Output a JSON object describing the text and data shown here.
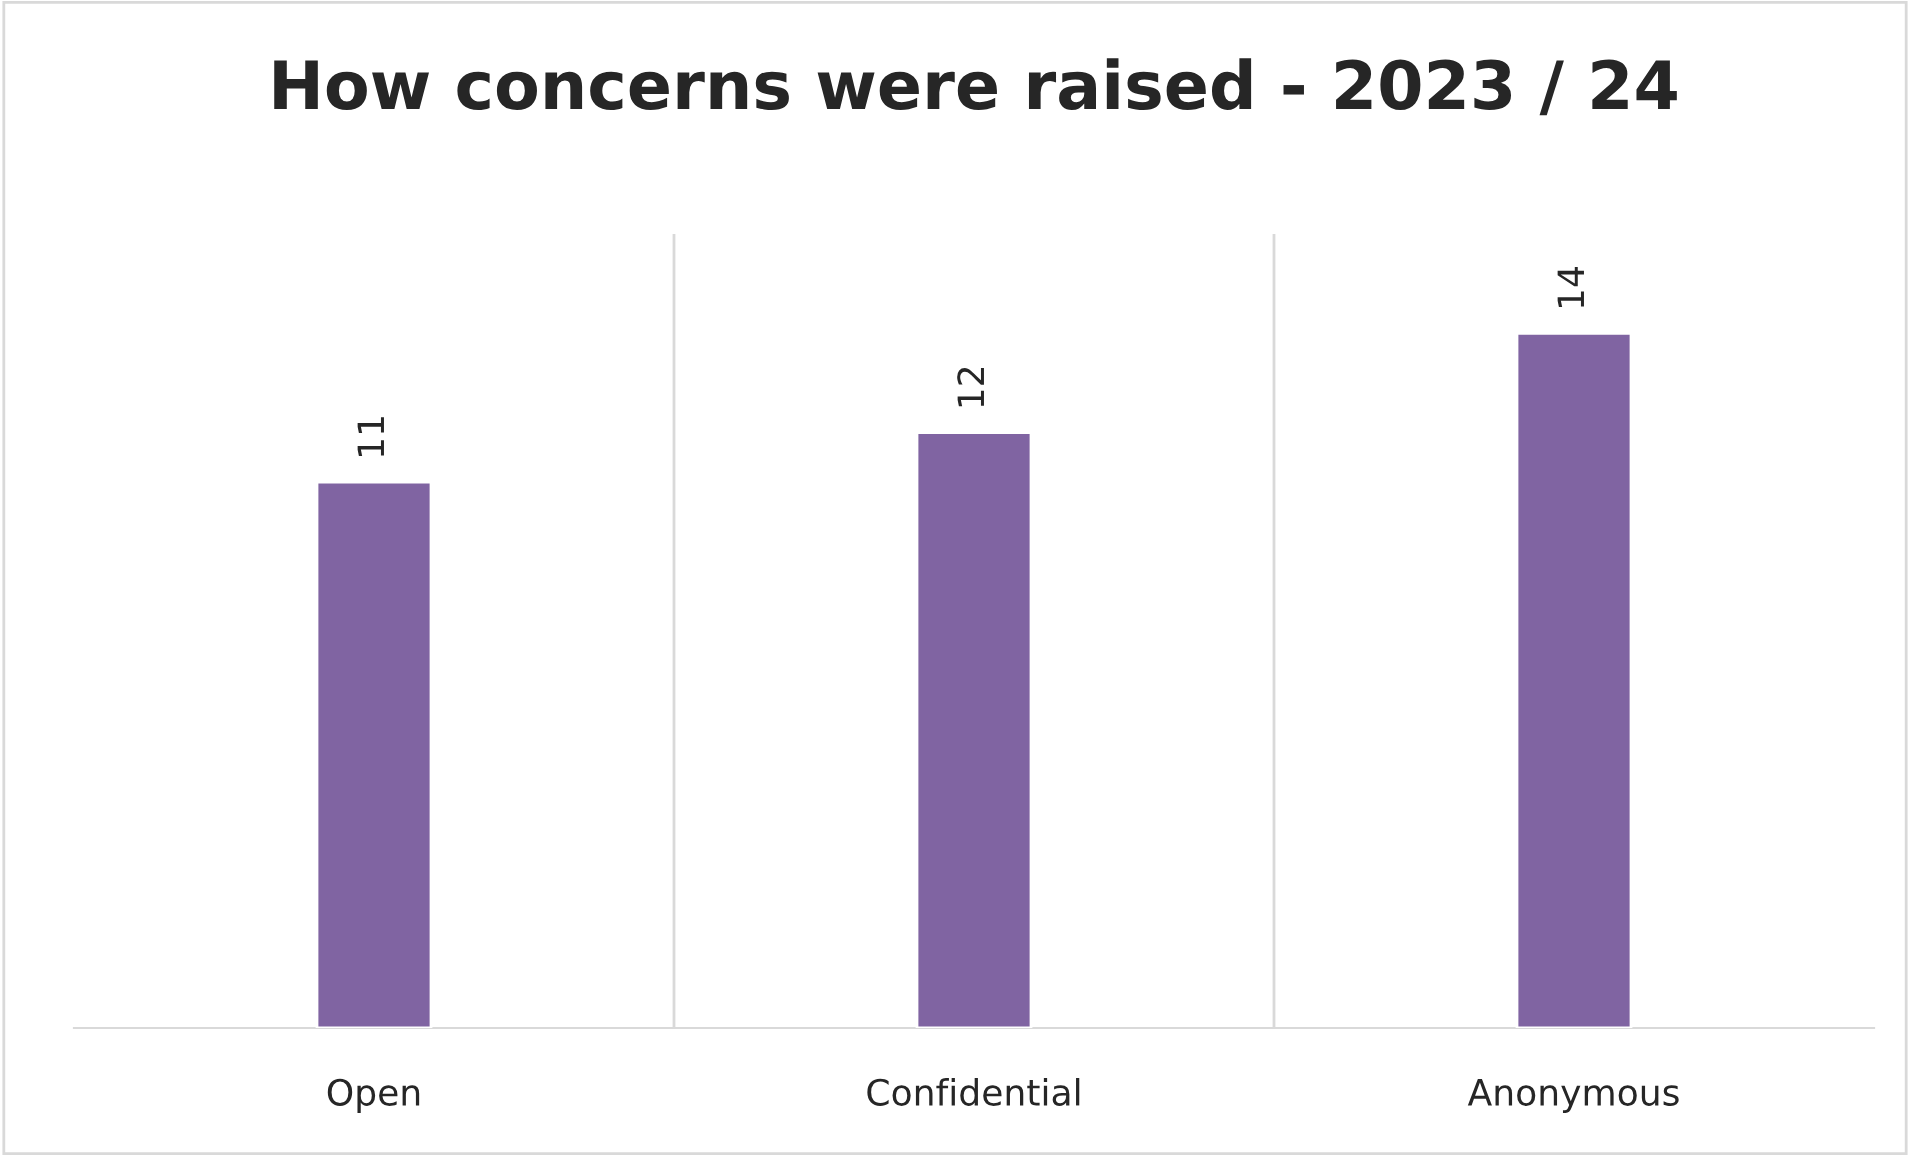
{
  "chart_data": {
    "type": "bar",
    "title": "How concerns were raised - 2023 / 24",
    "categories": [
      "Open",
      "Confidential",
      "Anonymous"
    ],
    "values": [
      11,
      12,
      14
    ],
    "color": "#8064a2",
    "ylim": [
      0,
      16
    ],
    "data_labels": true,
    "grid": "x",
    "tick_labels": "x"
  }
}
